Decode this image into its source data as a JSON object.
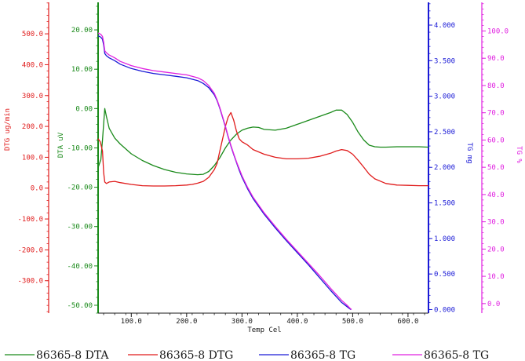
{
  "chart_data": {
    "type": "line",
    "xlabel": "Temp Cel",
    "x_ticks": [
      "100.0",
      "200.0",
      "300.0",
      "400.0",
      "500.0",
      "600.0"
    ],
    "xlim": [
      40,
      637
    ],
    "grid": false,
    "legend_position": "bottom",
    "axes": [
      {
        "id": "dta",
        "label": "DTA uV",
        "color": "#1a8a1a",
        "ylim": [
          -52,
          27
        ],
        "ticks": [
          "20.00",
          "10.00",
          "0.00",
          "-10.00",
          "-20.00",
          "-30.00",
          "-40.00",
          "-50.00"
        ]
      },
      {
        "id": "dtg",
        "label": "DTG ug/min",
        "color": "#e01b1b",
        "ylim": [
          -405,
          602
        ],
        "ticks": [
          "500.0",
          "400.0",
          "300.0",
          "200.0",
          "100.0",
          "0.0",
          "-100.0",
          "-200.0",
          "-300.0"
        ]
      },
      {
        "id": "tgmg",
        "label": "TG mg",
        "color": "#1a1ad6",
        "ylim": [
          -0.05,
          4.32
        ],
        "ticks": [
          "4.000",
          "3.500",
          "3.000",
          "2.500",
          "2.000",
          "1.500",
          "1.000",
          "0.500",
          "0.000"
        ]
      },
      {
        "id": "tgpct",
        "label": "TG %",
        "color": "#e020e0",
        "ylim": [
          -3.5,
          110.5
        ],
        "ticks": [
          "100.0",
          "90.0",
          "80.0",
          "70.0",
          "60.0",
          "50.0",
          "40.0",
          "30.0",
          "20.0",
          "10.0",
          "0.0"
        ]
      }
    ],
    "series": [
      {
        "name": "86365-8 DTA",
        "axis": "dta",
        "color": "#1a8a1a",
        "x": [
          40,
          45,
          48,
          52,
          55,
          60,
          70,
          80,
          100,
          120,
          140,
          160,
          180,
          200,
          220,
          230,
          240,
          250,
          260,
          270,
          280,
          290,
          300,
          310,
          320,
          330,
          340,
          360,
          380,
          400,
          420,
          440,
          460,
          470,
          480,
          490,
          500,
          510,
          520,
          530,
          540,
          550,
          560,
          580,
          600,
          620,
          637
        ],
        "y": [
          -15,
          -13,
          -8,
          0,
          -2,
          -5,
          -7.5,
          -9,
          -11.5,
          -13.2,
          -14.5,
          -15.5,
          -16.2,
          -16.6,
          -16.8,
          -16.7,
          -16,
          -14.5,
          -12.5,
          -10,
          -8,
          -6.5,
          -5.5,
          -5,
          -4.7,
          -4.8,
          -5.3,
          -5.5,
          -5,
          -4,
          -3,
          -2,
          -1,
          -0.4,
          -0.4,
          -1.5,
          -3.5,
          -6,
          -8,
          -9.3,
          -9.7,
          -9.8,
          -9.8,
          -9.7,
          -9.7,
          -9.7,
          -9.8
        ]
      },
      {
        "name": "86365-8 DTG",
        "axis": "dtg",
        "color": "#e01b1b",
        "x": [
          40,
          44,
          48,
          50,
          52,
          55,
          60,
          70,
          80,
          100,
          120,
          140,
          160,
          180,
          200,
          210,
          220,
          230,
          240,
          250,
          255,
          260,
          265,
          270,
          275,
          280,
          285,
          290,
          295,
          300,
          310,
          320,
          340,
          360,
          380,
          400,
          420,
          440,
          460,
          470,
          480,
          490,
          500,
          510,
          520,
          530,
          540,
          560,
          580,
          600,
          620,
          637
        ],
        "y": [
          160,
          150,
          120,
          50,
          20,
          15,
          20,
          22,
          18,
          12,
          8,
          7,
          7,
          8,
          10,
          12,
          16,
          22,
          35,
          60,
          80,
          120,
          160,
          200,
          230,
          245,
          220,
          185,
          160,
          150,
          140,
          125,
          110,
          100,
          95,
          95,
          97,
          103,
          113,
          120,
          125,
          122,
          110,
          90,
          68,
          45,
          30,
          15,
          10,
          9,
          8,
          8
        ]
      },
      {
        "name": "86365-8 TG",
        "axis": "tgmg",
        "color": "#1a1ad6",
        "x": [
          40,
          45,
          48,
          50,
          52,
          55,
          60,
          70,
          80,
          100,
          120,
          140,
          160,
          180,
          200,
          220,
          230,
          240,
          250,
          255,
          260,
          265,
          270,
          275,
          280,
          285,
          290,
          295,
          300,
          310,
          320,
          340,
          360,
          380,
          400,
          420,
          440,
          460,
          480,
          490,
          495,
          497
        ],
        "y": [
          3.85,
          3.83,
          3.8,
          3.72,
          3.6,
          3.57,
          3.54,
          3.5,
          3.45,
          3.39,
          3.35,
          3.32,
          3.3,
          3.28,
          3.26,
          3.22,
          3.18,
          3.12,
          3.02,
          2.94,
          2.83,
          2.7,
          2.57,
          2.43,
          2.3,
          2.18,
          2.07,
          1.96,
          1.86,
          1.7,
          1.56,
          1.34,
          1.15,
          0.97,
          0.8,
          0.63,
          0.45,
          0.27,
          0.1,
          0.04,
          0.01,
          0.0
        ]
      },
      {
        "name": "86365-8 TG",
        "axis": "tgmg",
        "color": "#e020e0",
        "x": [
          40,
          45,
          48,
          50,
          52,
          55,
          60,
          70,
          80,
          100,
          120,
          140,
          160,
          180,
          200,
          220,
          230,
          240,
          250,
          255,
          260,
          265,
          270,
          275,
          280,
          285,
          290,
          295,
          300,
          310,
          320,
          340,
          360,
          380,
          400,
          420,
          440,
          460,
          480,
          490,
          495,
          498
        ],
        "y": [
          3.89,
          3.87,
          3.84,
          3.76,
          3.64,
          3.61,
          3.58,
          3.54,
          3.49,
          3.43,
          3.39,
          3.36,
          3.34,
          3.32,
          3.3,
          3.26,
          3.22,
          3.15,
          3.04,
          2.95,
          2.84,
          2.71,
          2.58,
          2.44,
          2.31,
          2.19,
          2.08,
          1.98,
          1.88,
          1.72,
          1.58,
          1.36,
          1.17,
          0.99,
          0.82,
          0.65,
          0.48,
          0.3,
          0.13,
          0.06,
          0.02,
          0.0
        ]
      }
    ]
  }
}
